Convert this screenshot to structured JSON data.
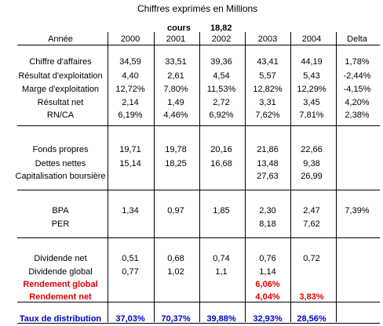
{
  "title": "Chiffres exprimés en Millions",
  "cours_label": "cours",
  "cours_value": "18,82",
  "header": {
    "label": "Année",
    "years": [
      "2000",
      "2001",
      "2002",
      "2003",
      "2004"
    ],
    "delta": "Delta"
  },
  "rows": [
    {
      "label": "Chiffre d'affaires",
      "values": [
        "34,59",
        "33,51",
        "39,36",
        "43,41",
        "44,19",
        "1,78%"
      ]
    },
    {
      "label": "Résultat d'exploitation",
      "values": [
        "4,40",
        "2,61",
        "4,54",
        "5,57",
        "5,43",
        "-2,44%"
      ]
    },
    {
      "label": "Marge d'exploitation",
      "values": [
        "12,72%",
        "7,80%",
        "11,53%",
        "12,82%",
        "12,29%",
        "-4,15%"
      ]
    },
    {
      "label": "Résultat net",
      "values": [
        "2,14",
        "1,49",
        "2,72",
        "3,31",
        "3,45",
        "4,20%"
      ]
    },
    {
      "label": "RN/CA",
      "values": [
        "6,19%",
        "4,46%",
        "6,92%",
        "7,62%",
        "7,81%",
        "2,38%"
      ]
    },
    {
      "label": "Fonds propres",
      "values": [
        "19,71",
        "19,78",
        "20,16",
        "21,86",
        "22,66",
        ""
      ]
    },
    {
      "label": "Dettes nettes",
      "values": [
        "15,14",
        "18,25",
        "16,68",
        "13,48",
        "9,38",
        ""
      ]
    },
    {
      "label": "Capitalisation boursière",
      "values": [
        "",
        "",
        "",
        "27,63",
        "26,99",
        ""
      ]
    },
    {
      "label": "BPA",
      "values": [
        "1,34",
        "0,97",
        "1,85",
        "2,30",
        "2,47",
        "7,39%"
      ]
    },
    {
      "label": "PER",
      "values": [
        "",
        "",
        "",
        "8,18",
        "7,62",
        ""
      ]
    },
    {
      "label": "Dividende net",
      "values": [
        "0,51",
        "0,68",
        "0,74",
        "0,76",
        "0,72",
        ""
      ]
    },
    {
      "label": "Dividende global",
      "values": [
        "0,77",
        "1,02",
        "1,1",
        "1,14",
        "",
        ""
      ]
    },
    {
      "label": "Rendement global",
      "values": [
        "",
        "",
        "",
        "6,06%",
        "",
        ""
      ]
    },
    {
      "label": "Rendement net",
      "values": [
        "",
        "",
        "",
        "4,04%",
        "3,83%",
        ""
      ]
    },
    {
      "label": "Taux de distribution",
      "values": [
        "37,03%",
        "70,37%",
        "39,88%",
        "32,93%",
        "28,56%",
        ""
      ]
    }
  ],
  "colors": {
    "red": "#e00000",
    "blue": "#0000c8"
  }
}
